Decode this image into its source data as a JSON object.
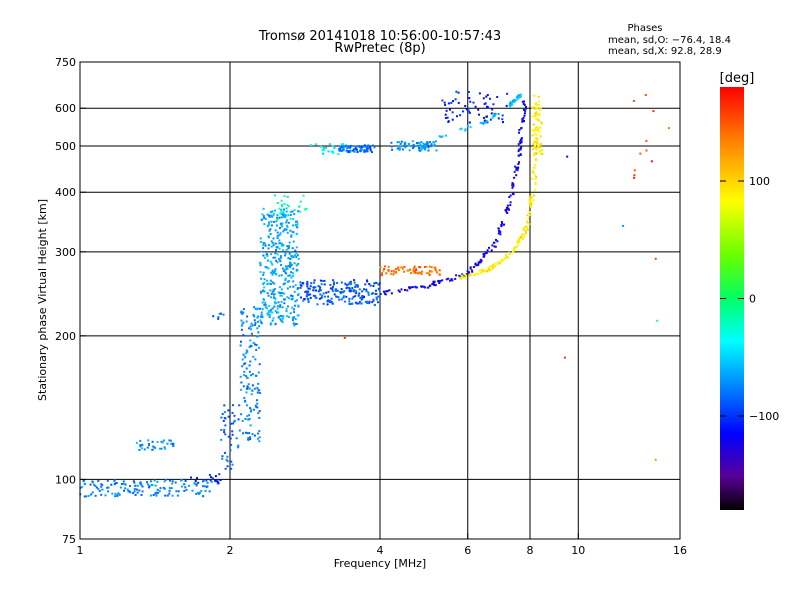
{
  "chart_data": {
    "type": "scatter",
    "title": "Tromsø 20141018 10:56:00-10:57:43",
    "subtitle": "RwPretec (8p)",
    "xlabel": "Frequency [MHz]",
    "ylabel": "Stationary phase Virtual Height [km]",
    "x_scale": "log",
    "y_scale": "log",
    "xlim": [
      1,
      16
    ],
    "ylim": [
      75,
      750
    ],
    "x_ticks": [
      1,
      2,
      4,
      6,
      8,
      10,
      16
    ],
    "x_tick_labels": [
      "1",
      "2",
      "4",
      "6",
      "8",
      "10",
      "16"
    ],
    "y_ticks": [
      75,
      100,
      200,
      300,
      400,
      500,
      600,
      750
    ],
    "y_tick_labels": [
      "75",
      "100",
      "200",
      "300",
      "400",
      "500",
      "600",
      "750"
    ],
    "x_gridlines": [
      2,
      4,
      6,
      8,
      10
    ],
    "y_gridlines": [
      100,
      200,
      300,
      400,
      500,
      600
    ],
    "grid": true,
    "info": {
      "heading": "Phases",
      "line_o": "mean, sd,O: −76.4, 18.4",
      "line_x": "mean, sd,X:  92.8, 28.9"
    },
    "colorbar": {
      "label": "[deg]",
      "range": [
        -180,
        180
      ],
      "ticks": [
        100,
        0,
        -100
      ],
      "tick_labels": [
        "100",
        "0",
        "−100"
      ],
      "colormap": "rainbow"
    },
    "clusters": [
      {
        "x": [
          1.0,
          1.85
        ],
        "y": [
          92,
          100
        ],
        "phase": -75,
        "n": 150
      },
      {
        "x": [
          1.3,
          1.55
        ],
        "y": [
          115,
          121
        ],
        "phase": -70,
        "n": 35
      },
      {
        "x": [
          1.6,
          1.92
        ],
        "y": [
          98,
          103
        ],
        "phase": -110,
        "n": 18
      },
      {
        "x": [
          1.92,
          2.1
        ],
        "y": [
          105,
          145
        ],
        "phase": -85,
        "n": 45
      },
      {
        "x": [
          1.85,
          1.95
        ],
        "y": [
          216,
          224
        ],
        "phase": -85,
        "n": 6
      },
      {
        "x": [
          2.1,
          2.3
        ],
        "y": [
          120,
          230
        ],
        "phase": -75,
        "n": 140
      },
      {
        "x": [
          2.3,
          2.75
        ],
        "y": [
          210,
          370
        ],
        "phase": -65,
        "n": 380
      },
      {
        "x": [
          2.45,
          2.85
        ],
        "y": [
          350,
          400
        ],
        "phase": -20,
        "n": 25
      },
      {
        "x": [
          2.75,
          4.0
        ],
        "y": [
          232,
          262
        ],
        "phase": -90,
        "n": 200
      },
      {
        "x": [
          2.9,
          3.5
        ],
        "y": [
          480,
          505
        ],
        "phase": -40,
        "n": 30
      },
      {
        "x": [
          3.3,
          3.9
        ],
        "y": [
          485,
          502
        ],
        "phase": -85,
        "n": 70
      },
      {
        "x": [
          4.0,
          5.3
        ],
        "y": [
          268,
          280
        ],
        "phase": 140,
        "n": 70
      },
      {
        "x": [
          4.2,
          5.2
        ],
        "y": [
          488,
          512
        ],
        "phase": -70,
        "n": 70
      },
      {
        "x": [
          5.3,
          7.2
        ],
        "y": [
          560,
          650
        ],
        "phase": -110,
        "n": 60
      },
      {
        "x": [
          8.05,
          8.5
        ],
        "y": [
          480,
          640
        ],
        "phase": 90,
        "n": 60
      },
      {
        "x": [
          12.8,
          14.2
        ],
        "y": [
          420,
          640
        ],
        "phase": 160,
        "n": 10
      }
    ],
    "traces": [
      {
        "x": [
          4.0,
          5.0,
          6.0,
          6.8,
          7.3,
          7.6,
          7.8
        ],
        "y": [
          245,
          255,
          270,
          310,
          380,
          480,
          620
        ],
        "phase": -120,
        "spread": 0.02,
        "n": 180
      },
      {
        "x": [
          5.8,
          6.6,
          7.4,
          7.9,
          8.15,
          8.3
        ],
        "y": [
          265,
          275,
          300,
          340,
          420,
          600
        ],
        "phase": 90,
        "spread": 0.02,
        "n": 160
      },
      {
        "x": [
          5.2,
          6.5,
          7.3,
          7.8
        ],
        "y": [
          520,
          560,
          610,
          650
        ],
        "phase": -60,
        "spread": 0.015,
        "n": 50
      }
    ],
    "outliers": [
      {
        "x": 3.4,
        "y": 198,
        "phase": 150
      },
      {
        "x": 9.4,
        "y": 180,
        "phase": 150
      },
      {
        "x": 9.5,
        "y": 475,
        "phase": -120
      },
      {
        "x": 12.3,
        "y": 340,
        "phase": -60
      },
      {
        "x": 14.3,
        "y": 110,
        "phase": 140
      },
      {
        "x": 14.3,
        "y": 290,
        "phase": 150
      },
      {
        "x": 14.4,
        "y": 215,
        "phase": -20
      },
      {
        "x": 15.2,
        "y": 545,
        "phase": 150
      }
    ]
  }
}
